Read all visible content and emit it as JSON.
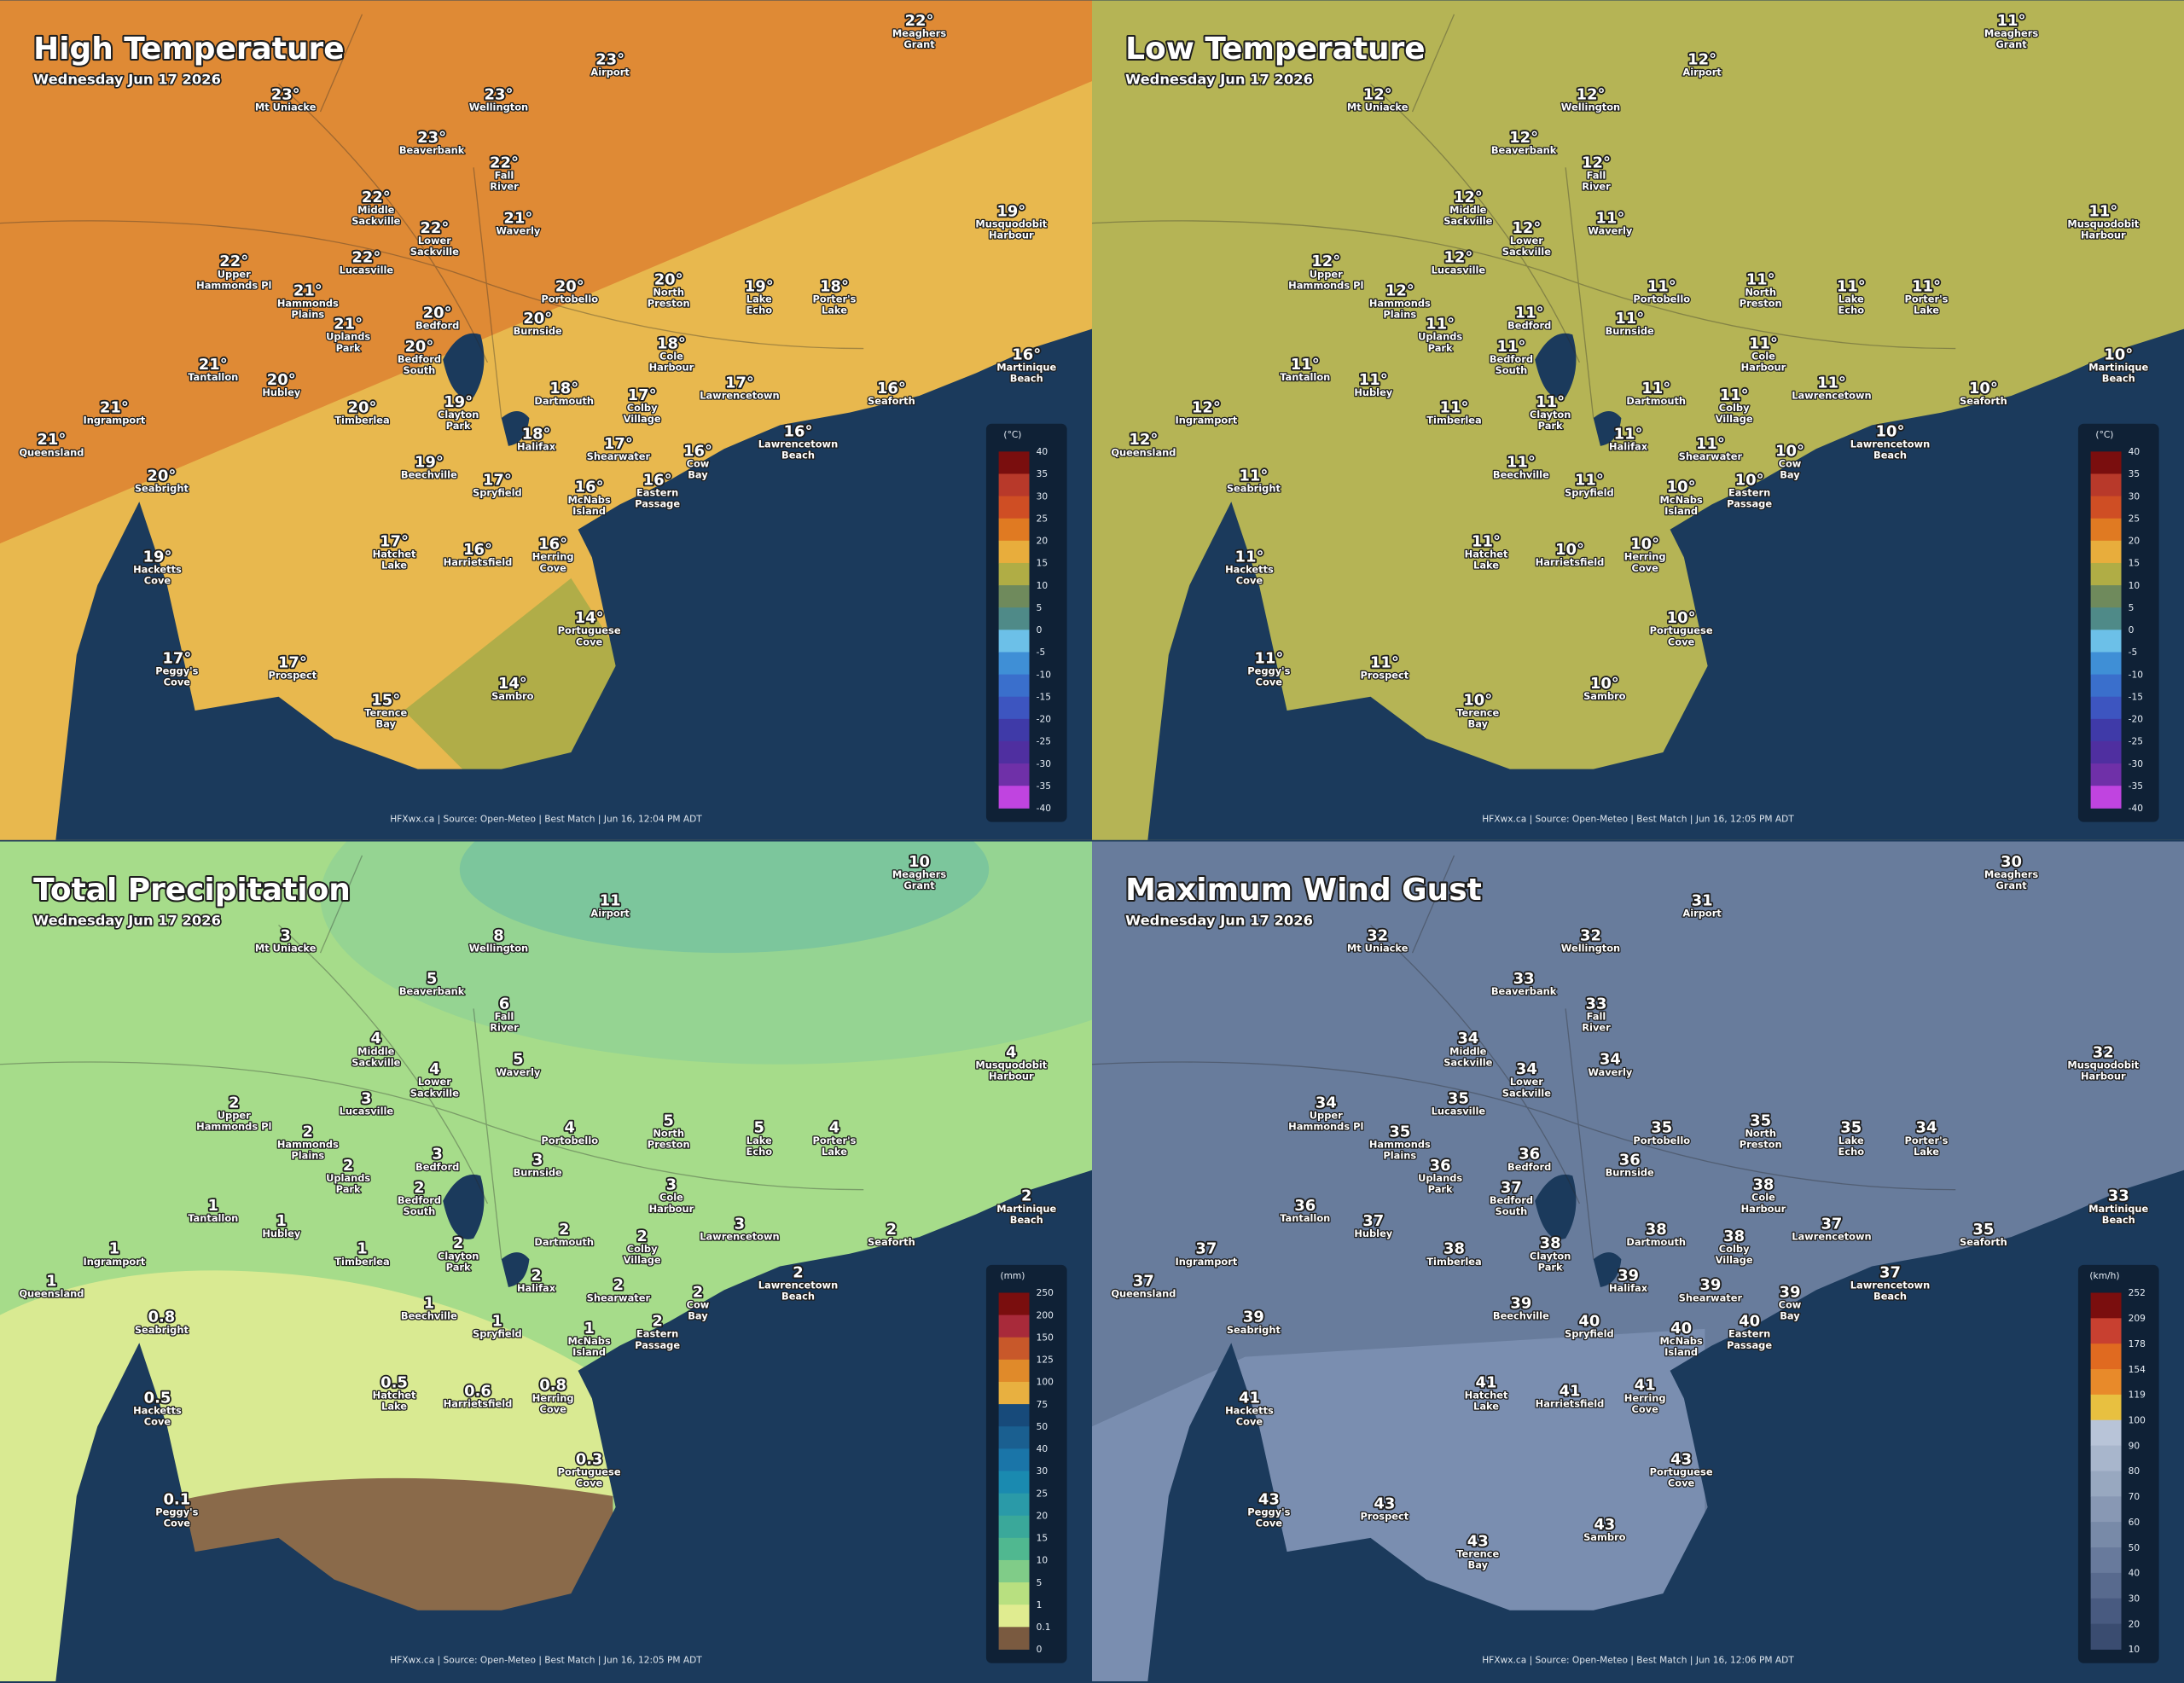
{
  "places": [
    [
      "Meaghers",
      "Grant"
    ],
    [
      "Airport"
    ],
    [
      "Mt Uniacke"
    ],
    [
      "Wellington"
    ],
    [
      "Beaverbank"
    ],
    [
      "Fall",
      "River"
    ],
    [
      "Middle",
      "Sackville"
    ],
    [
      "Waverly"
    ],
    [
      "Lower",
      "Sackville"
    ],
    [
      "Musquodobit",
      "Harbour"
    ],
    [
      "Upper",
      "Hammonds Pl"
    ],
    [
      "Lucasville"
    ],
    [
      "Portobello"
    ],
    [
      "North",
      "Preston"
    ],
    [
      "Lake",
      "Echo"
    ],
    [
      "Porter's",
      "Lake"
    ],
    [
      "Hammonds",
      "Plains"
    ],
    [
      "Uplands",
      "Park"
    ],
    [
      "Bedford"
    ],
    [
      "Burnside"
    ],
    [
      "Cole",
      "Harbour"
    ],
    [
      "Bedford",
      "South"
    ],
    [
      "Martinique",
      "Beach"
    ],
    [
      "Tantallon"
    ],
    [
      "Hubley"
    ],
    [
      "Dartmouth"
    ],
    [
      "Colby",
      "Village"
    ],
    [
      "Lawrencetown"
    ],
    [
      "Seaforth"
    ],
    [
      "Timberlea"
    ],
    [
      "Ingramport"
    ],
    [
      "Clayton",
      "Park"
    ],
    [
      "Queensland"
    ],
    [
      "Halifax"
    ],
    [
      "Shearwater"
    ],
    [
      "Lawrencetown",
      "Beach"
    ],
    [
      "Cow",
      "Bay"
    ],
    [
      "Seabright"
    ],
    [
      "Beechville"
    ],
    [
      "Spryfield"
    ],
    [
      "McNabs",
      "Island"
    ],
    [
      "Eastern",
      "Passage"
    ],
    [
      "Hacketts",
      "Cove"
    ],
    [
      "Hatchet",
      "Lake"
    ],
    [
      "Harrietsfield"
    ],
    [
      "Herring",
      "Cove"
    ],
    [
      "Portuguese",
      "Cove"
    ],
    [
      "Sambro"
    ],
    [
      "Peggy's",
      "Cove"
    ],
    [
      "Prospect"
    ],
    [
      "Terence",
      "Bay"
    ]
  ],
  "panels": [
    {
      "title": "High Temperature",
      "subtitle": "Wednesday Jun 17 2026",
      "footer": "HFXwx.ca | Source: Open-Meteo | Best Match | Jun 16, 12:04 PM ADT",
      "legend": {
        "unit": "(°C)",
        "labels": [
          "40",
          "35",
          "30",
          "25",
          "20",
          "15",
          "10",
          "5",
          "0",
          "-5",
          "-10",
          "-15",
          "-20",
          "-25",
          "-30",
          "-35",
          "-40"
        ],
        "colors": [
          "#7a0e0e",
          "#b8392a",
          "#cf4e24",
          "#e07a22",
          "#e8ad3c",
          "#b0ad45",
          "#6f8a5c",
          "#4f8a88",
          "#6cc0e8",
          "#3f8fd6",
          "#3a6fcc",
          "#3d55c0",
          "#3f3aa8",
          "#4f2fa0",
          "#6f30a8",
          "#c044e0"
        ]
      },
      "values": [
        "22°",
        "23°",
        "23°",
        "23°",
        "23°",
        "22°",
        "22°",
        "21°",
        "22°",
        "19°",
        "22°",
        "22°",
        "20°",
        "20°",
        "19°",
        "18°",
        "21°",
        "21°",
        "20°",
        "20°",
        "18°",
        "20°",
        "16°",
        "21°",
        "20°",
        "18°",
        "17°",
        "17°",
        "16°",
        "20°",
        "21°",
        "19°",
        "21°",
        "18°",
        "17°",
        "16°",
        "16°",
        "20°",
        "19°",
        "17°",
        "16°",
        "16°",
        "19°",
        "17°",
        "16°",
        "16°",
        "14°",
        "14°",
        "17°",
        "17°",
        "15°"
      ]
    },
    {
      "title": "Low Temperature",
      "subtitle": "Wednesday Jun 17 2026",
      "footer": "HFXwx.ca | Source: Open-Meteo | Best Match | Jun 16, 12:05 PM ADT",
      "legend": {
        "unit": "(°C)",
        "labels": [
          "40",
          "35",
          "30",
          "25",
          "20",
          "15",
          "10",
          "5",
          "0",
          "-5",
          "-10",
          "-15",
          "-20",
          "-25",
          "-30",
          "-35",
          "-40"
        ],
        "colors": [
          "#7a0e0e",
          "#b8392a",
          "#cf4e24",
          "#e07a22",
          "#e8ad3c",
          "#b0ad45",
          "#6f8a5c",
          "#4f8a88",
          "#6cc0e8",
          "#3f8fd6",
          "#3a6fcc",
          "#3d55c0",
          "#3f3aa8",
          "#4f2fa0",
          "#6f30a8",
          "#c044e0"
        ]
      },
      "values": [
        "11°",
        "12°",
        "12°",
        "12°",
        "12°",
        "12°",
        "12°",
        "11°",
        "12°",
        "11°",
        "12°",
        "12°",
        "11°",
        "11°",
        "11°",
        "11°",
        "12°",
        "11°",
        "11°",
        "11°",
        "11°",
        "11°",
        "10°",
        "11°",
        "11°",
        "11°",
        "11°",
        "11°",
        "10°",
        "11°",
        "12°",
        "11°",
        "12°",
        "11°",
        "11°",
        "10°",
        "10°",
        "11°",
        "11°",
        "11°",
        "10°",
        "10°",
        "11°",
        "11°",
        "10°",
        "10°",
        "10°",
        "10°",
        "11°",
        "11°",
        "10°"
      ]
    },
    {
      "title": "Total Precipitation",
      "subtitle": "Wednesday Jun 17 2026",
      "footer": "HFXwx.ca | Source: Open-Meteo | Best Match | Jun 16, 12:05 PM ADT",
      "legend": {
        "unit": "(mm)",
        "labels": [
          "250",
          "200",
          "150",
          "125",
          "100",
          "75",
          "50",
          "40",
          "30",
          "25",
          "20",
          "15",
          "10",
          "5",
          "1",
          "0.1",
          "0"
        ],
        "colors": [
          "#7a0e0e",
          "#a82a3a",
          "#c8582a",
          "#e08a2a",
          "#e8b040",
          "#174a7a",
          "#1a5f90",
          "#1a75a8",
          "#1a8ab0",
          "#2a9aa8",
          "#3aa89a",
          "#50b890",
          "#80cc88",
          "#b8e080",
          "#e0ec90",
          "#7a5a40"
        ]
      },
      "values": [
        10,
        11,
        3,
        8,
        5,
        6,
        4,
        5,
        4,
        4,
        2,
        3,
        4,
        5,
        5,
        4,
        2,
        2,
        3,
        3,
        3,
        2,
        2,
        1,
        1,
        2,
        2,
        3,
        2,
        1,
        1,
        2,
        1,
        2,
        2,
        2,
        2,
        0.8,
        1,
        1,
        1,
        2,
        0.5,
        0.5,
        0.6,
        0.8,
        0.3,
        null,
        0.1,
        null,
        null
      ]
    },
    {
      "title": "Maximum Wind Gust",
      "subtitle": "Wednesday Jun 17 2026",
      "footer": "HFXwx.ca | Source: Open-Meteo | Best Match | Jun 16, 12:06 PM ADT",
      "legend": {
        "unit": "(km/h)",
        "labels": [
          "252",
          "209",
          "178",
          "154",
          "119",
          "100",
          "90",
          "80",
          "70",
          "60",
          "50",
          "40",
          "30",
          "20",
          "10"
        ],
        "colors": [
          "#7a0e0e",
          "#c84030",
          "#e06a20",
          "#e88a2a",
          "#e8c040",
          "#b8c4d8",
          "#a8b6cc",
          "#98a8c0",
          "#8898b4",
          "#788aa8",
          "#687a9c",
          "#586a8e",
          "#485a80",
          "#3a4c70"
        ]
      },
      "values": [
        30,
        31,
        32,
        32,
        33,
        33,
        34,
        34,
        34,
        32,
        34,
        35,
        35,
        35,
        35,
        34,
        35,
        36,
        36,
        36,
        38,
        37,
        33,
        36,
        37,
        38,
        38,
        37,
        35,
        38,
        37,
        38,
        37,
        39,
        39,
        37,
        39,
        39,
        39,
        40,
        40,
        40,
        41,
        41,
        41,
        41,
        43,
        43,
        43,
        43,
        43
      ]
    }
  ]
}
